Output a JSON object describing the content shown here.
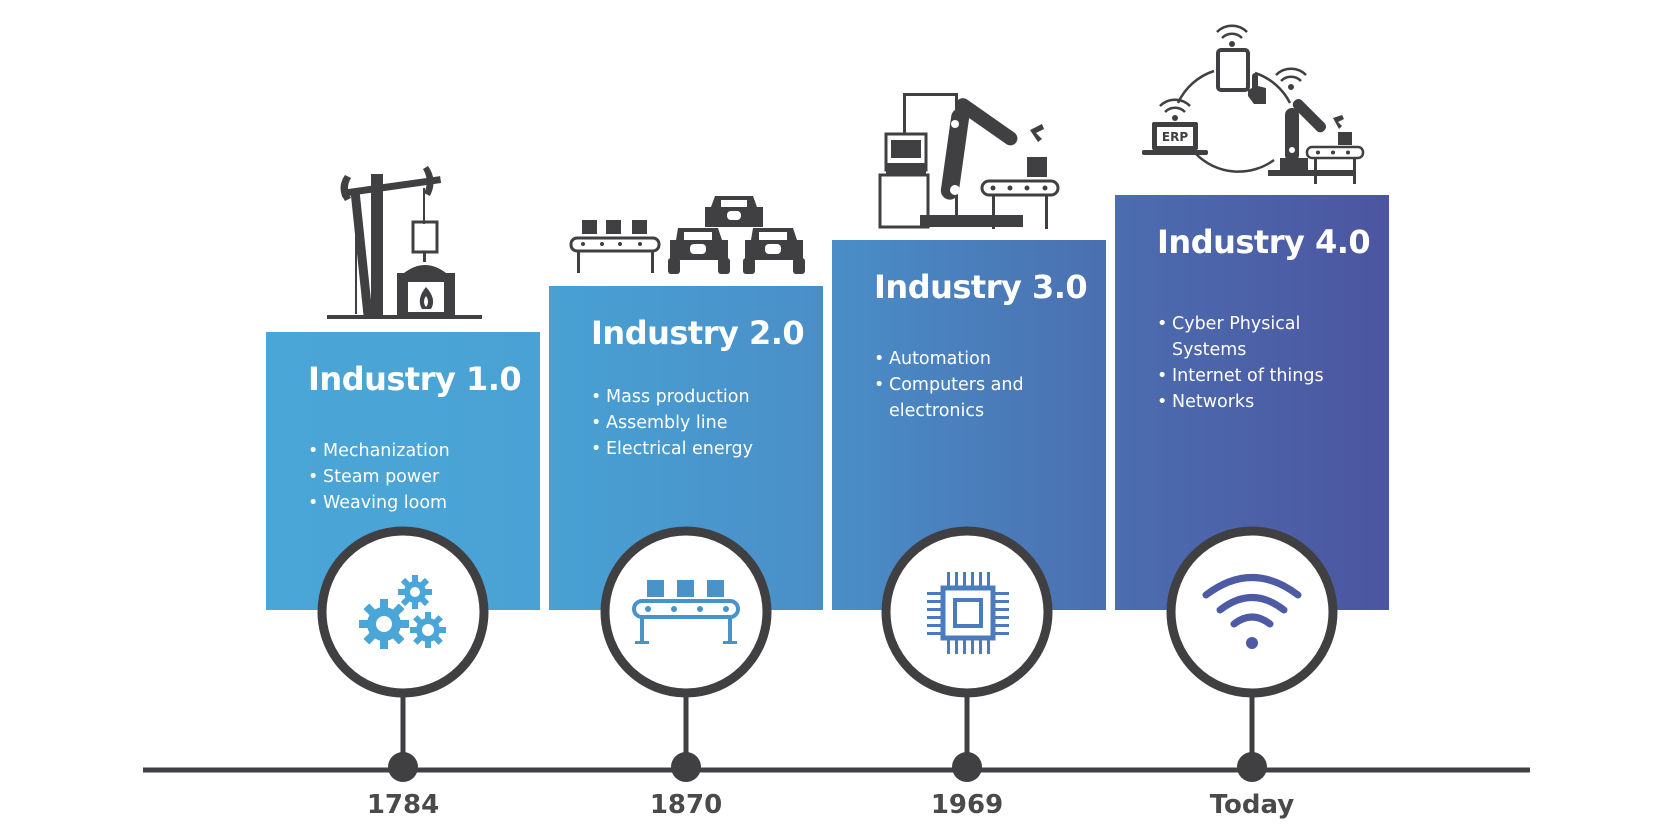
{
  "stages": [
    {
      "title": "Industry 1.0",
      "items": [
        "Mechanization",
        "Steam power",
        "Weaving loom"
      ],
      "year": "1784",
      "icon": "gears-icon",
      "illustration": "steam-pump-furnace-illustration"
    },
    {
      "title": "Industry 2.0",
      "items": [
        "Mass production",
        "Assembly line",
        "Electrical energy"
      ],
      "year": "1870",
      "icon": "conveyor-belt-icon",
      "illustration": "assembly-line-cars-illustration"
    },
    {
      "title": "Industry 3.0",
      "items": [
        "Automation",
        "Computers and electronics"
      ],
      "year": "1969",
      "icon": "microchip-icon",
      "illustration": "robot-arm-computer-illustration"
    },
    {
      "title": "Industry 4.0",
      "items": [
        "Cyber Physical Systems",
        "Internet of things",
        "Networks"
      ],
      "year": "Today",
      "icon": "wifi-icon",
      "illustration": "connected-erp-robot-illustration",
      "erp_label": "ERP"
    }
  ],
  "colors": {
    "dark": "#404042",
    "stage1": "#4aa6d6",
    "stage2": "#4a97cd",
    "stage3": "#4b7fbd",
    "stage4": "#4c5aa3",
    "icon1": "#4aa6d6",
    "icon2": "#4a93c9",
    "icon3": "#4a7cbd",
    "icon4": "#4c5ba3"
  }
}
